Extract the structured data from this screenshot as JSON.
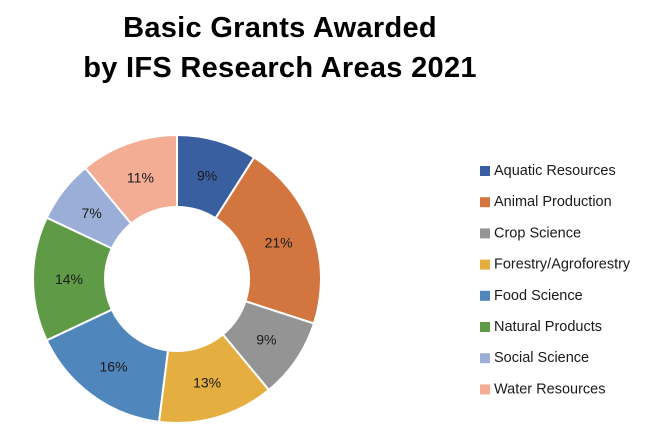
{
  "chart_data": {
    "type": "pie",
    "title_line1": "Basic Grants Awarded",
    "title_line2": "by IFS Research Areas 2021",
    "slices": [
      {
        "label": "Aquatic Resources",
        "value": 9,
        "display": "9%",
        "color": "#3a5fa0"
      },
      {
        "label": "Animal Production",
        "value": 21,
        "display": "21%",
        "color": "#d2753f"
      },
      {
        "label": "Crop Science",
        "value": 9,
        "display": "9%",
        "color": "#949494"
      },
      {
        "label": "Forestry/Agroforestry",
        "value": 13,
        "display": "13%",
        "color": "#e5ae40"
      },
      {
        "label": "Food Science",
        "value": 16,
        "display": "16%",
        "color": "#4f86bb"
      },
      {
        "label": "Natural Products",
        "value": 14,
        "display": "14%",
        "color": "#5f9b47"
      },
      {
        "label": "Social Science",
        "value": 7,
        "display": "7%",
        "color": "#9aaed7"
      },
      {
        "label": "Water Resources",
        "value": 11,
        "display": "11%",
        "color": "#f2ad94"
      }
    ],
    "legend_position": "right",
    "donut": true
  }
}
